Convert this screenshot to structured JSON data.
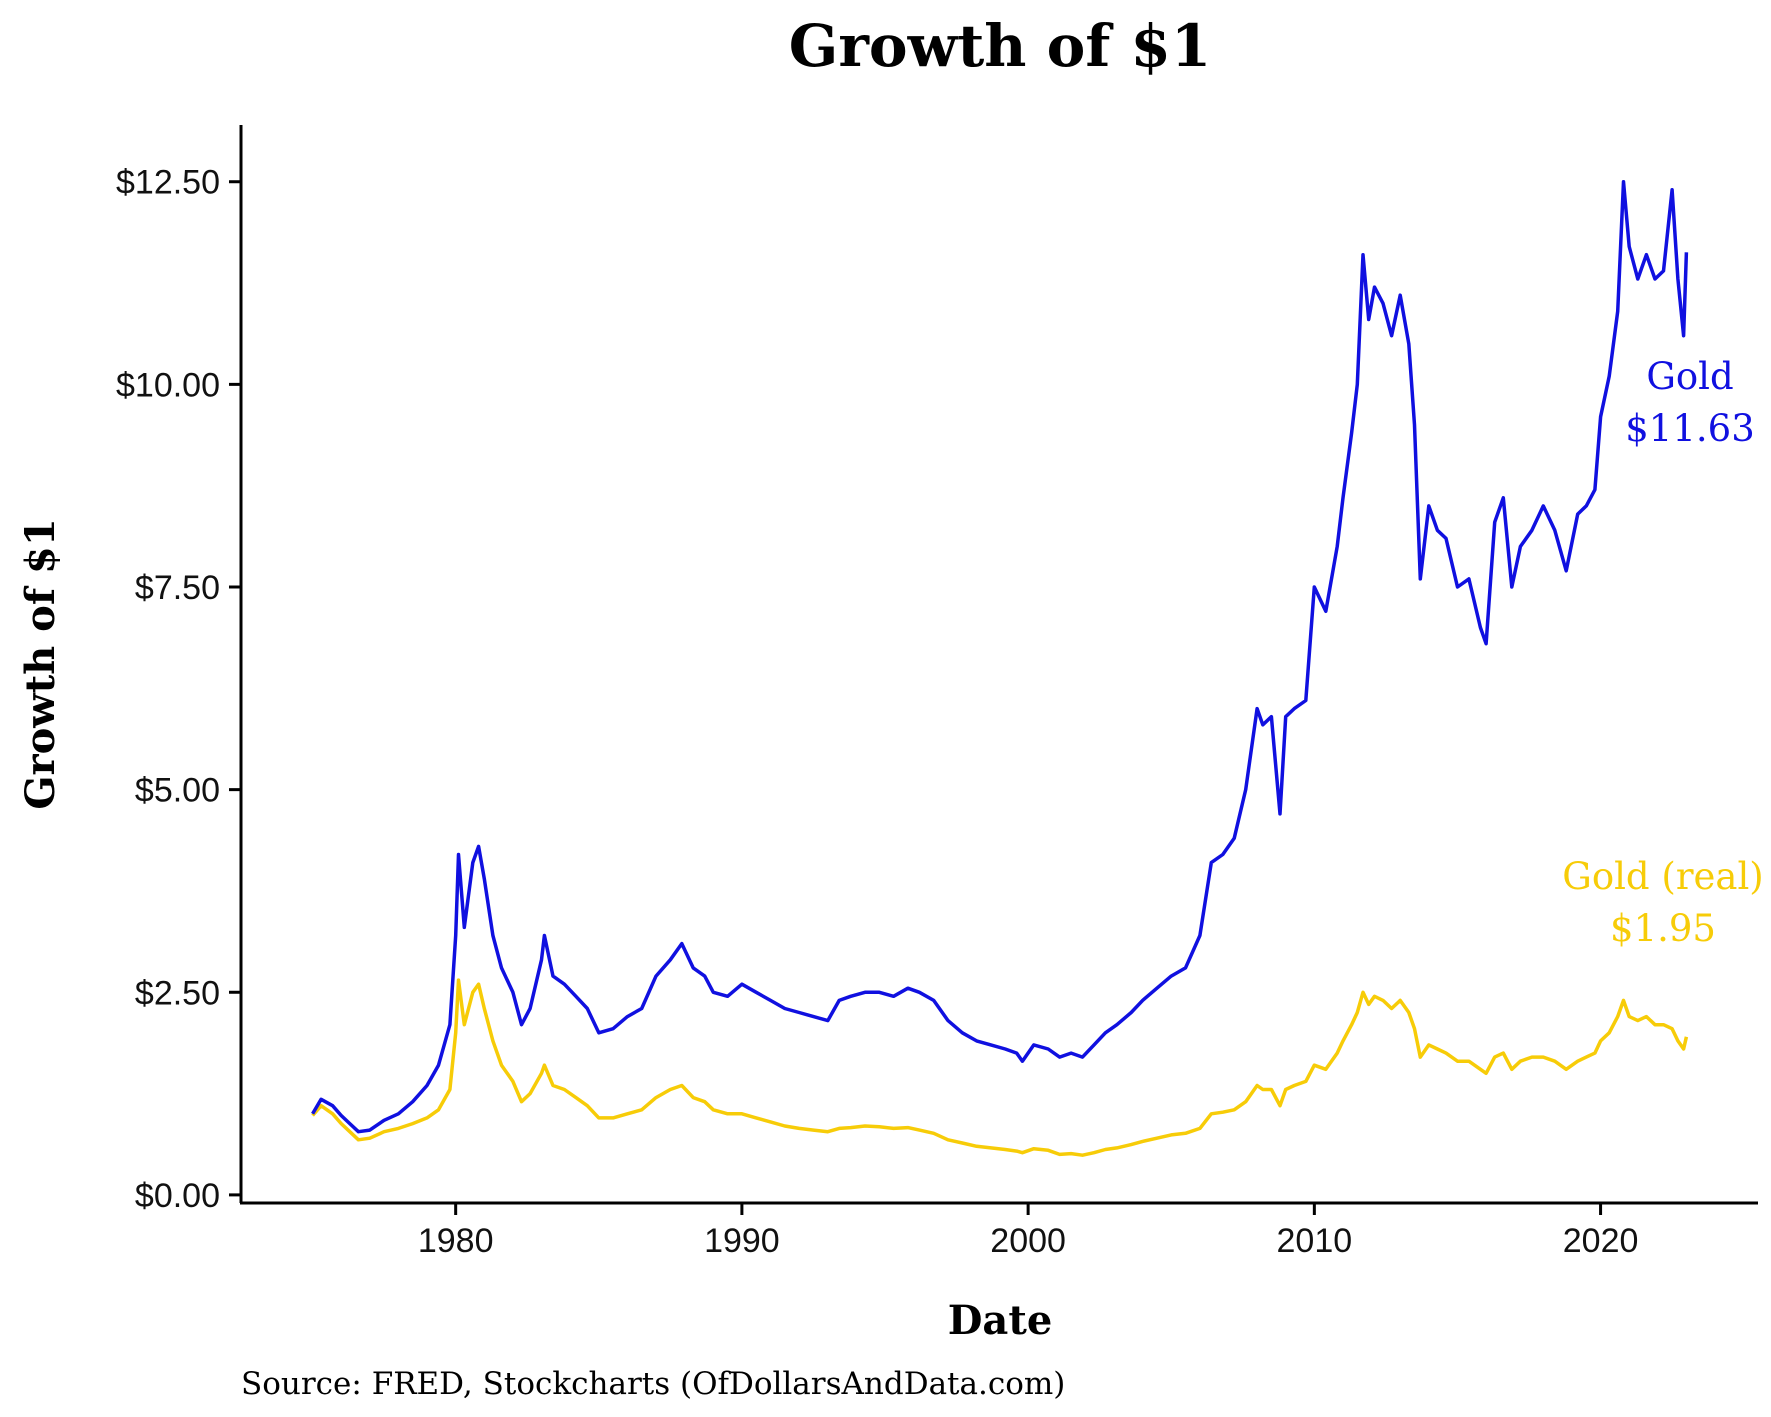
{
  "chart_data": {
    "type": "line",
    "title": "Growth of $1",
    "xlabel": "Date",
    "ylabel": "Growth of $1",
    "source": "Source:  FRED, Stockcharts (OfDollarsAndData.com)",
    "xlim": [
      1972.5,
      2025.5
    ],
    "ylim": [
      -0.1,
      13.2
    ],
    "x_ticks": [
      1980,
      1990,
      2000,
      2010,
      2020
    ],
    "y_ticks": [
      0,
      2.5,
      5,
      7.5,
      10,
      12.5
    ],
    "y_tick_labels": [
      "$0.00",
      "$2.50",
      "$5.00",
      "$7.50",
      "$10.00",
      "$12.50"
    ],
    "grid": false,
    "legend": "none",
    "series": [
      {
        "name": "Gold",
        "end_label": "$11.63",
        "color": "#1010e0",
        "x": [
          1975.0,
          1975.3,
          1975.7,
          1976.0,
          1976.3,
          1976.6,
          1977.0,
          1977.5,
          1978.0,
          1978.5,
          1979.0,
          1979.4,
          1979.8,
          1980.0,
          1980.1,
          1980.3,
          1980.6,
          1980.8,
          1981.0,
          1981.3,
          1981.6,
          1982.0,
          1982.3,
          1982.6,
          1983.0,
          1983.1,
          1983.4,
          1983.8,
          1984.2,
          1984.6,
          1985.0,
          1985.5,
          1986.0,
          1986.5,
          1987.0,
          1987.5,
          1987.9,
          1988.3,
          1988.7,
          1989.0,
          1989.5,
          1990.0,
          1990.5,
          1991.0,
          1991.5,
          1992.0,
          1992.5,
          1993.0,
          1993.4,
          1993.8,
          1994.3,
          1994.8,
          1995.3,
          1995.8,
          1996.2,
          1996.7,
          1997.2,
          1997.7,
          1998.2,
          1998.7,
          1999.2,
          1999.6,
          1999.8,
          2000.2,
          2000.7,
          2001.1,
          2001.5,
          2001.9,
          2002.3,
          2002.7,
          2003.1,
          2003.6,
          2004.0,
          2004.5,
          2005.0,
          2005.5,
          2006.0,
          2006.4,
          2006.8,
          2007.2,
          2007.6,
          2008.0,
          2008.2,
          2008.5,
          2008.8,
          2009.0,
          2009.3,
          2009.7,
          2010.0,
          2010.4,
          2010.8,
          2011.0,
          2011.3,
          2011.5,
          2011.7,
          2011.9,
          2012.1,
          2012.4,
          2012.7,
          2013.0,
          2013.3,
          2013.5,
          2013.7,
          2014.0,
          2014.3,
          2014.6,
          2015.0,
          2015.4,
          2015.8,
          2016.0,
          2016.3,
          2016.6,
          2016.9,
          2017.2,
          2017.6,
          2018.0,
          2018.4,
          2018.8,
          2019.2,
          2019.5,
          2019.8,
          2020.0,
          2020.3,
          2020.6,
          2020.8,
          2021.0,
          2021.3,
          2021.6,
          2021.9,
          2022.2,
          2022.5,
          2022.7,
          2022.9,
          2023.0
        ],
        "y": [
          1.0,
          1.18,
          1.1,
          0.98,
          0.88,
          0.78,
          0.8,
          0.92,
          1.0,
          1.15,
          1.35,
          1.6,
          2.1,
          3.2,
          4.2,
          3.3,
          4.1,
          4.3,
          3.9,
          3.2,
          2.8,
          2.5,
          2.1,
          2.3,
          2.9,
          3.2,
          2.7,
          2.6,
          2.45,
          2.3,
          2.0,
          2.05,
          2.2,
          2.3,
          2.7,
          2.9,
          3.1,
          2.8,
          2.7,
          2.5,
          2.45,
          2.6,
          2.5,
          2.4,
          2.3,
          2.25,
          2.2,
          2.15,
          2.4,
          2.45,
          2.5,
          2.5,
          2.45,
          2.55,
          2.5,
          2.4,
          2.15,
          2.0,
          1.9,
          1.85,
          1.8,
          1.75,
          1.65,
          1.85,
          1.8,
          1.7,
          1.75,
          1.7,
          1.85,
          2.0,
          2.1,
          2.25,
          2.4,
          2.55,
          2.7,
          2.8,
          3.2,
          4.1,
          4.2,
          4.4,
          5.0,
          6.0,
          5.8,
          5.9,
          4.7,
          5.9,
          6.0,
          6.1,
          7.5,
          7.2,
          8.0,
          8.6,
          9.4,
          10.0,
          11.6,
          10.8,
          11.2,
          11.0,
          10.6,
          11.1,
          10.5,
          9.5,
          7.6,
          8.5,
          8.2,
          8.1,
          7.5,
          7.6,
          7.0,
          6.8,
          8.3,
          8.6,
          7.5,
          8.0,
          8.2,
          8.5,
          8.2,
          7.7,
          8.4,
          8.5,
          8.7,
          9.6,
          10.1,
          10.9,
          12.5,
          11.7,
          11.3,
          11.6,
          11.3,
          11.4,
          12.4,
          11.3,
          10.6,
          11.63
        ],
        "label_lines": [
          "Gold",
          "$11.63"
        ]
      },
      {
        "name": "Gold (real)",
        "end_label": "$1.95",
        "color": "#f7cc08",
        "x": [
          1975.0,
          1975.3,
          1975.7,
          1976.0,
          1976.3,
          1976.6,
          1977.0,
          1977.5,
          1978.0,
          1978.5,
          1979.0,
          1979.4,
          1979.8,
          1980.0,
          1980.1,
          1980.3,
          1980.6,
          1980.8,
          1981.0,
          1981.3,
          1981.6,
          1982.0,
          1982.3,
          1982.6,
          1983.0,
          1983.1,
          1983.4,
          1983.8,
          1984.2,
          1984.6,
          1985.0,
          1985.5,
          1986.0,
          1986.5,
          1987.0,
          1987.5,
          1987.9,
          1988.3,
          1988.7,
          1989.0,
          1989.5,
          1990.0,
          1990.5,
          1991.0,
          1991.5,
          1992.0,
          1992.5,
          1993.0,
          1993.4,
          1993.8,
          1994.3,
          1994.8,
          1995.3,
          1995.8,
          1996.2,
          1996.7,
          1997.2,
          1997.7,
          1998.2,
          1998.7,
          1999.2,
          1999.6,
          1999.8,
          2000.2,
          2000.7,
          2001.1,
          2001.5,
          2001.9,
          2002.3,
          2002.7,
          2003.1,
          2003.6,
          2004.0,
          2004.5,
          2005.0,
          2005.5,
          2006.0,
          2006.4,
          2006.8,
          2007.2,
          2007.6,
          2008.0,
          2008.2,
          2008.5,
          2008.8,
          2009.0,
          2009.3,
          2009.7,
          2010.0,
          2010.4,
          2010.8,
          2011.0,
          2011.3,
          2011.5,
          2011.7,
          2011.9,
          2012.1,
          2012.4,
          2012.7,
          2013.0,
          2013.3,
          2013.5,
          2013.7,
          2014.0,
          2014.3,
          2014.6,
          2015.0,
          2015.4,
          2015.8,
          2016.0,
          2016.3,
          2016.6,
          2016.9,
          2017.2,
          2017.6,
          2018.0,
          2018.4,
          2018.8,
          2019.2,
          2019.5,
          2019.8,
          2020.0,
          2020.3,
          2020.6,
          2020.8,
          2021.0,
          2021.3,
          2021.6,
          2021.9,
          2022.2,
          2022.5,
          2022.7,
          2022.9,
          2023.0
        ],
        "y": [
          0.98,
          1.1,
          1.0,
          0.88,
          0.78,
          0.68,
          0.7,
          0.78,
          0.82,
          0.88,
          0.95,
          1.05,
          1.3,
          2.0,
          2.65,
          2.1,
          2.5,
          2.6,
          2.3,
          1.9,
          1.6,
          1.4,
          1.15,
          1.25,
          1.5,
          1.6,
          1.35,
          1.3,
          1.2,
          1.1,
          0.95,
          0.95,
          1.0,
          1.05,
          1.2,
          1.3,
          1.35,
          1.2,
          1.15,
          1.05,
          1.0,
          1.0,
          0.95,
          0.9,
          0.85,
          0.82,
          0.8,
          0.78,
          0.82,
          0.83,
          0.85,
          0.84,
          0.82,
          0.83,
          0.8,
          0.76,
          0.68,
          0.64,
          0.6,
          0.58,
          0.56,
          0.54,
          0.52,
          0.57,
          0.55,
          0.5,
          0.51,
          0.49,
          0.52,
          0.56,
          0.58,
          0.62,
          0.66,
          0.7,
          0.74,
          0.76,
          0.82,
          1.0,
          1.02,
          1.05,
          1.15,
          1.35,
          1.3,
          1.3,
          1.1,
          1.3,
          1.35,
          1.4,
          1.6,
          1.55,
          1.75,
          1.9,
          2.1,
          2.25,
          2.5,
          2.35,
          2.45,
          2.4,
          2.3,
          2.4,
          2.25,
          2.05,
          1.7,
          1.85,
          1.8,
          1.75,
          1.65,
          1.65,
          1.55,
          1.5,
          1.7,
          1.75,
          1.55,
          1.65,
          1.7,
          1.7,
          1.65,
          1.55,
          1.65,
          1.7,
          1.75,
          1.9,
          2.0,
          2.2,
          2.4,
          2.2,
          2.15,
          2.2,
          2.1,
          2.1,
          2.05,
          1.9,
          1.8,
          1.95
        ],
        "label_lines": [
          "Gold (real)",
          "$1.95"
        ]
      }
    ]
  }
}
